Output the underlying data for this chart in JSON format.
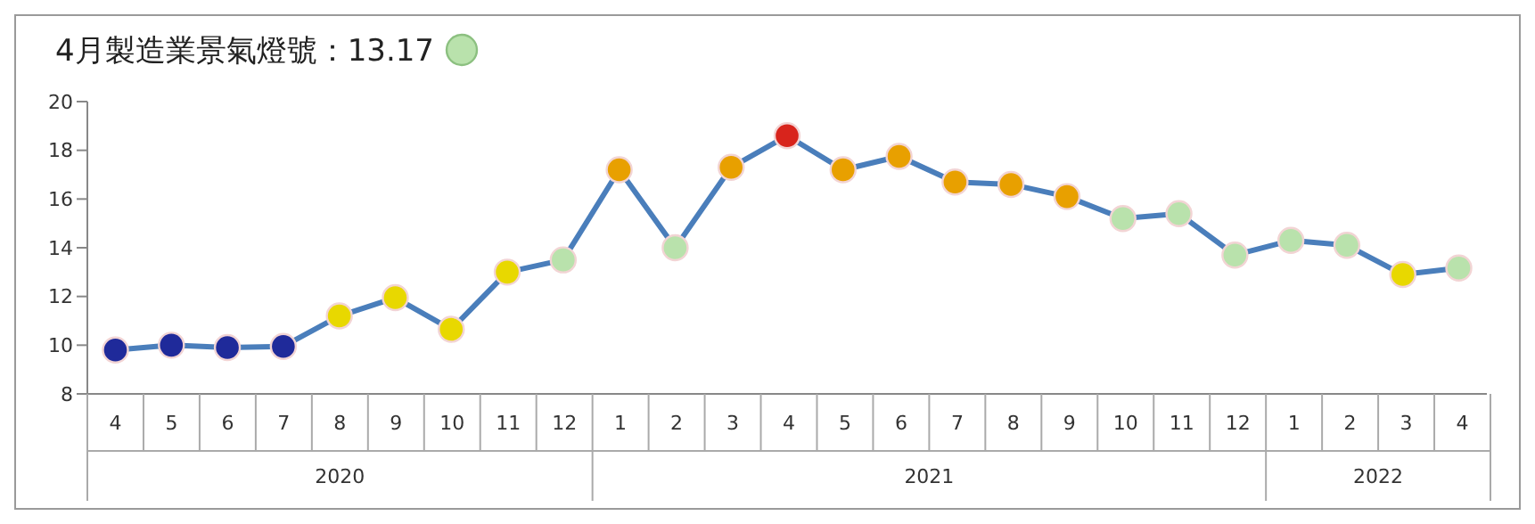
{
  "chart_data": {
    "type": "line",
    "title": "4月製造業景氣燈號：13.17",
    "categories": [
      "4",
      "5",
      "6",
      "7",
      "8",
      "9",
      "10",
      "11",
      "12",
      "1",
      "2",
      "3",
      "4",
      "5",
      "6",
      "7",
      "8",
      "9",
      "10",
      "11",
      "12",
      "1",
      "2",
      "3",
      "4"
    ],
    "annotations": [
      "2020",
      "2021",
      "2022"
    ],
    "series": [
      {
        "color": "#4a7ebb",
        "values": [
          9.8,
          10.0,
          9.9,
          9.95,
          11.2,
          11.95,
          10.65,
          13.0,
          13.5,
          17.2,
          14.0,
          17.3,
          18.6,
          17.2,
          17.75,
          16.7,
          16.6,
          16.1,
          15.2,
          15.4,
          13.7,
          14.3,
          14.1,
          12.9,
          13.17
        ],
        "colors": [
          "#1f2a9a",
          "#1f2a9a",
          "#1f2a9a",
          "#1f2a9a",
          "#e8d800",
          "#e8d800",
          "#e8d800",
          "#e8d800",
          "#b9e2ac",
          "#e8a000",
          "#b9e2ac",
          "#e8a000",
          "#d8241c",
          "#e8a000",
          "#e8a000",
          "#e8a000",
          "#e8a000",
          "#e8a000",
          "#b9e2ac",
          "#b9e2ac",
          "#b9e2ac",
          "#b9e2ac",
          "#b9e2ac",
          "#e8d800",
          "#b9e2ac"
        ]
      }
    ],
    "ylim": [
      8,
      20
    ],
    "yticks": [
      8,
      10,
      12,
      14,
      16,
      18,
      20
    ],
    "marker": "circle",
    "line_style": "solid"
  }
}
